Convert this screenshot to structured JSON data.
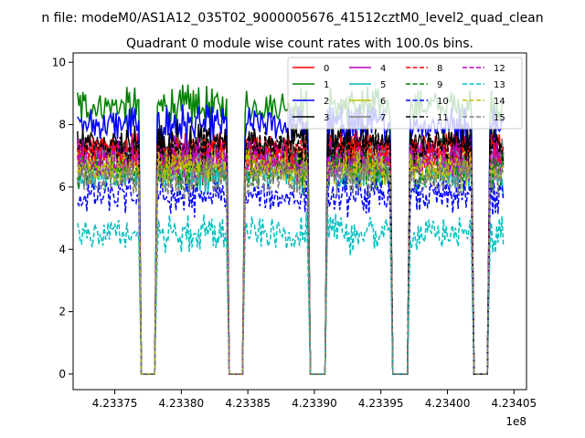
{
  "figure": {
    "suptitle": "n file: modeM0/AS1A12_035T02_9000005676_41512cztM0_level2_quad_clean",
    "title": "Quadrant 0 module wise count rates with 100.0s bins.",
    "offset_label": "1e8"
  },
  "chart_data": {
    "type": "line",
    "title": "Quadrant 0 module wise count rates with 100.0s bins.",
    "xlabel": "",
    "ylabel": "",
    "xlim": [
      4.2337187,
      4.2340594
    ],
    "ylim": [
      -0.5,
      10.3
    ],
    "x_offset": "1e8",
    "x_ticks": [
      4.23375,
      4.2338,
      4.23385,
      4.2339,
      4.23395,
      4.234,
      4.23405
    ],
    "x_tick_labels": [
      "4.23375",
      "4.23380",
      "4.23385",
      "4.23390",
      "4.23395",
      "4.23400",
      "4.23405"
    ],
    "y_ticks": [
      0,
      2,
      4,
      6,
      8,
      10
    ],
    "y_tick_labels": [
      "0",
      "2",
      "4",
      "6",
      "8",
      "10"
    ],
    "grid": false,
    "legend": {
      "placement": "top-right",
      "ncol": 4
    },
    "segments": [
      {
        "start": 4.233722,
        "end": 4.233768
      },
      {
        "start": 4.233782,
        "end": 4.233834
      },
      {
        "start": 4.233848,
        "end": 4.233895
      },
      {
        "start": 4.23391,
        "end": 4.233957
      },
      {
        "start": 4.233972,
        "end": 4.234018
      },
      {
        "start": 4.234032,
        "end": 4.234042
      }
    ],
    "gaps": [
      {
        "start": 4.23377,
        "end": 4.23378
      },
      {
        "start": 4.233836,
        "end": 4.233846
      },
      {
        "start": 4.233897,
        "end": 4.233908
      },
      {
        "start": 4.233959,
        "end": 4.23397
      },
      {
        "start": 4.23402,
        "end": 4.23403
      }
    ],
    "gap_value": 0,
    "series": [
      {
        "name": "0",
        "color": "#ff0000",
        "dash": "solid",
        "level": 7.2
      },
      {
        "name": "1",
        "color": "#008000",
        "dash": "solid",
        "level": 8.6
      },
      {
        "name": "2",
        "color": "#0000ff",
        "dash": "solid",
        "level": 8.0
      },
      {
        "name": "3",
        "color": "#000000",
        "dash": "solid",
        "level": 7.4
      },
      {
        "name": "4",
        "color": "#bf00bf",
        "dash": "solid",
        "level": 7.0
      },
      {
        "name": "5",
        "color": "#00bfbf",
        "dash": "solid",
        "level": 6.4
      },
      {
        "name": "6",
        "color": "#bfbf00",
        "dash": "solid",
        "level": 6.7
      },
      {
        "name": "7",
        "color": "#808080",
        "dash": "solid",
        "level": 6.9
      },
      {
        "name": "8",
        "color": "#ff0000",
        "dash": "dashed",
        "level": 7.1
      },
      {
        "name": "9",
        "color": "#008000",
        "dash": "dashed",
        "level": 6.5
      },
      {
        "name": "10",
        "color": "#0000ff",
        "dash": "dashed",
        "level": 5.7
      },
      {
        "name": "11",
        "color": "#000000",
        "dash": "dashed",
        "level": 7.3
      },
      {
        "name": "12",
        "color": "#bf00bf",
        "dash": "dashed",
        "level": 6.8
      },
      {
        "name": "13",
        "color": "#00bfbf",
        "dash": "dashed",
        "level": 4.5
      },
      {
        "name": "14",
        "color": "#bfbf00",
        "dash": "dashed",
        "level": 6.6
      },
      {
        "name": "15",
        "color": "#808080",
        "dash": "dashed",
        "level": 6.3
      }
    ]
  }
}
